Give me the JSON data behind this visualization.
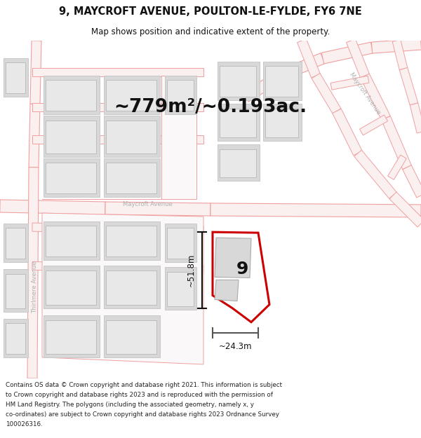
{
  "title_line1": "9, MAYCROFT AVENUE, POULTON-LE-FYLDE, FY6 7NE",
  "title_line2": "Map shows position and indicative extent of the property.",
  "area_text": "~779m²/~0.193ac.",
  "label_9": "9",
  "dim_height": "~51.8m",
  "dim_width": "~24.3m",
  "street_maycroft_lower": "Maycroft Avenue",
  "street_maycroft_upper": "Maycroft Avenue",
  "street_thirlmere": "Thirlmere Avenue",
  "footer_text": "Contains OS data © Crown copyright and database right 2021. This information is subject to Crown copyright and database rights 2023 and is reproduced with the permission of HM Land Registry. The polygons (including the associated geometry, namely x, y co-ordinates) are subject to Crown copyright and database rights 2023 Ordnance Survey 100026316.",
  "white": "#ffffff",
  "map_bg": "#f2f0f0",
  "red": "#cc0000",
  "pink_line": "#f0a0a0",
  "pink_fill": "#faf0f0",
  "gray_plot": "#d8d8d8",
  "gray_bldg": "#c8c8c8",
  "light_gray": "#e8e8e8",
  "gray_text": "#b0b0b0",
  "black": "#111111"
}
